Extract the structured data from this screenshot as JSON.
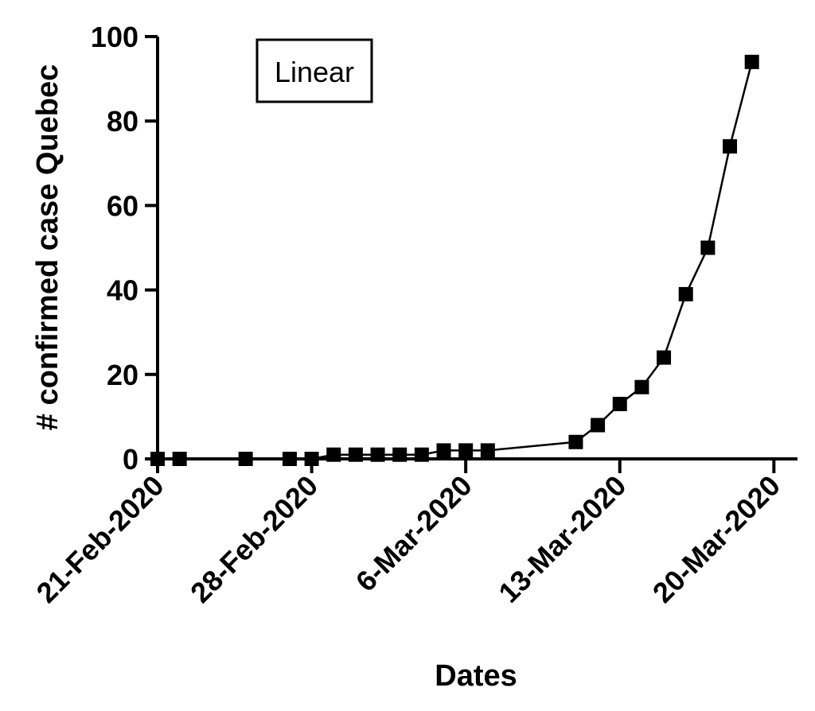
{
  "chart_data": {
    "type": "line",
    "xlabel": "Dates",
    "ylabel": "# confirmed case Quebec",
    "annotation": "Linear",
    "xlim": [
      "2020-02-21",
      "2020-03-21"
    ],
    "ylim": [
      0,
      100
    ],
    "x_ticks": [
      {
        "date": "2020-02-21",
        "label": "21-Feb-2020"
      },
      {
        "date": "2020-02-28",
        "label": "28-Feb-2020"
      },
      {
        "date": "2020-03-06",
        "label": "6-Mar-2020"
      },
      {
        "date": "2020-03-13",
        "label": "13-Mar-2020"
      },
      {
        "date": "2020-03-20",
        "label": "20-Mar-2020"
      }
    ],
    "y_ticks": [
      0,
      20,
      40,
      60,
      80,
      100
    ],
    "grid": false,
    "marker": "square",
    "color": "#000000",
    "series": [
      {
        "points": [
          {
            "x": "2020-02-21",
            "y": 0
          },
          {
            "x": "2020-02-22",
            "y": 0
          },
          {
            "x": "2020-02-25",
            "y": 0
          },
          {
            "x": "2020-02-27",
            "y": 0
          },
          {
            "x": "2020-02-28",
            "y": 0
          },
          {
            "x": "2020-02-29",
            "y": 1
          },
          {
            "x": "2020-03-01",
            "y": 1
          },
          {
            "x": "2020-03-02",
            "y": 1
          },
          {
            "x": "2020-03-03",
            "y": 1
          },
          {
            "x": "2020-03-04",
            "y": 1
          },
          {
            "x": "2020-03-05",
            "y": 2
          },
          {
            "x": "2020-03-06",
            "y": 2
          },
          {
            "x": "2020-03-07",
            "y": 2
          },
          {
            "x": "2020-03-11",
            "y": 4
          },
          {
            "x": "2020-03-12",
            "y": 8
          },
          {
            "x": "2020-03-13",
            "y": 13
          },
          {
            "x": "2020-03-14",
            "y": 17
          },
          {
            "x": "2020-03-15",
            "y": 24
          },
          {
            "x": "2020-03-16",
            "y": 39
          },
          {
            "x": "2020-03-17",
            "y": 50
          },
          {
            "x": "2020-03-18",
            "y": 74
          },
          {
            "x": "2020-03-19",
            "y": 94
          }
        ]
      }
    ]
  }
}
